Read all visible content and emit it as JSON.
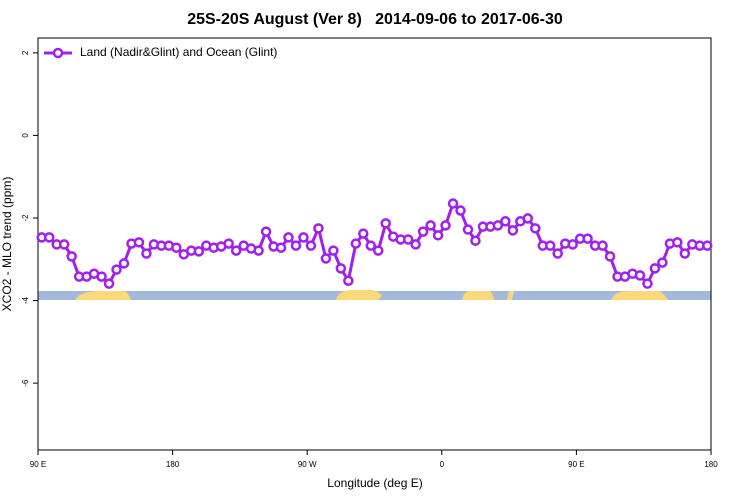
{
  "chart_data": {
    "type": "line",
    "title": "25S-20S August (Ver 8)   2014-09-06 to 2017-06-30",
    "xlabel": "Longitude (deg E)",
    "ylabel": "XCO2 - MLO trend (ppm)",
    "xlim": [
      90,
      540
    ],
    "ylim": [
      -7.62,
      2.36
    ],
    "xticks": [
      {
        "value": 90,
        "label": "90 E"
      },
      {
        "value": 180,
        "label": "180"
      },
      {
        "value": 270,
        "label": "90 W"
      },
      {
        "value": 360,
        "label": "0"
      },
      {
        "value": 450,
        "label": "90 E"
      },
      {
        "value": 540,
        "label": "180"
      }
    ],
    "yticks": [
      2,
      0,
      -2,
      -4,
      -6
    ],
    "legend": "top-left",
    "x": [
      92.5,
      97.5,
      102.5,
      107.5,
      112.5,
      117.5,
      122.5,
      127.5,
      132.5,
      137.5,
      142.5,
      147.5,
      152.5,
      157.5,
      162.5,
      167.5,
      172.5,
      177.5,
      182.5,
      187.5,
      192.5,
      197.5,
      202.5,
      207.5,
      212.5,
      217.5,
      222.5,
      227.5,
      232.5,
      237.5,
      242.5,
      247.5,
      252.5,
      257.5,
      262.5,
      267.5,
      272.5,
      277.5,
      282.5,
      287.5,
      292.5,
      297.5,
      302.5,
      307.5,
      312.5,
      317.5,
      322.5,
      327.5,
      332.5,
      337.5,
      342.5,
      347.5,
      352.5,
      357.5,
      362.5,
      367.5,
      372.5,
      377.5,
      382.5,
      387.5,
      392.5,
      397.5,
      402.5,
      407.5,
      412.5,
      417.5,
      422.5,
      427.5,
      432.5,
      437.5,
      442.5,
      447.5,
      452.5,
      457.5,
      462.5,
      467.5,
      472.5,
      477.5,
      482.5,
      487.5,
      492.5,
      497.5,
      502.5,
      507.5,
      512.5,
      517.5,
      522.5,
      527.5,
      532.5,
      537.5
    ],
    "series": [
      {
        "name": "Land (Nadir&Glint) and Ocean (Glint)",
        "color": "#a020f0",
        "values": [
          -2.47,
          -2.47,
          -2.64,
          -2.64,
          -2.93,
          -3.42,
          -3.42,
          -3.35,
          -3.42,
          -3.59,
          -3.25,
          -3.1,
          -2.62,
          -2.59,
          -2.86,
          -2.64,
          -2.67,
          -2.67,
          -2.72,
          -2.88,
          -2.79,
          -2.81,
          -2.67,
          -2.72,
          -2.69,
          -2.62,
          -2.79,
          -2.67,
          -2.74,
          -2.79,
          -2.33,
          -2.69,
          -2.72,
          -2.47,
          -2.67,
          -2.47,
          -2.67,
          -2.25,
          -2.98,
          -2.79,
          -3.22,
          -3.52,
          -2.62,
          -2.38,
          -2.67,
          -2.79,
          -2.13,
          -2.45,
          -2.52,
          -2.52,
          -2.64,
          -2.33,
          -2.18,
          -2.42,
          -2.18,
          -1.65,
          -1.82,
          -2.28,
          -2.55,
          -2.21,
          -2.21,
          -2.18,
          -2.08,
          -2.3,
          -2.08,
          -2.01,
          -2.25,
          -2.67,
          -2.67,
          -2.86,
          -2.62,
          -2.64,
          -2.5,
          -2.5,
          -2.67,
          -2.67,
          -2.93,
          -3.42,
          -3.42,
          -3.35,
          -3.39,
          -3.59,
          -3.22,
          -3.08,
          -2.62,
          -2.59,
          -2.86,
          -2.64,
          -2.67,
          -2.67
        ]
      }
    ]
  }
}
